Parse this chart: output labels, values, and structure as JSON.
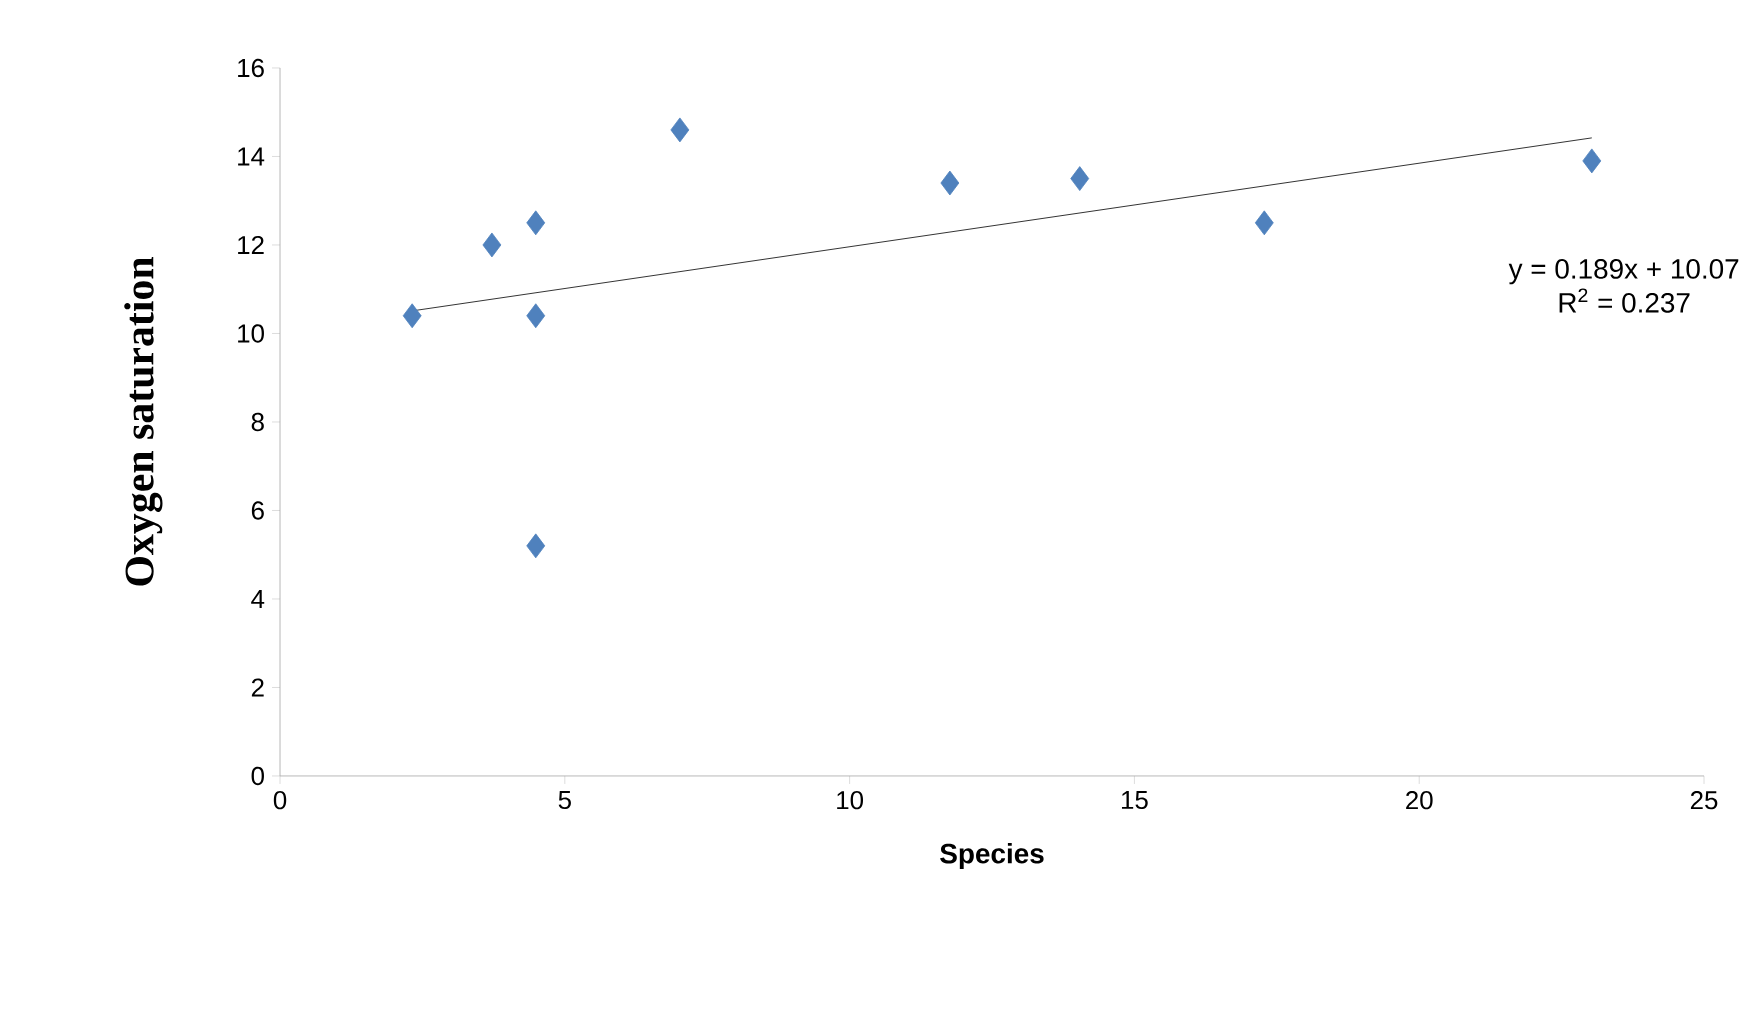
{
  "chart_data": {
    "type": "scatter",
    "xlabel": "Species",
    "ylabel": "Oxygen saturation",
    "xlim": [
      0,
      25
    ],
    "ylim": [
      0,
      16
    ],
    "xticks": [
      0,
      5,
      10,
      15,
      20,
      25
    ],
    "yticks": [
      0,
      2,
      4,
      6,
      8,
      10,
      12,
      14,
      16
    ],
    "grid": false,
    "marker": "diamond",
    "series": [
      {
        "color": "#4f81bd",
        "x": [
          2.32,
          3.72,
          4.49,
          4.49,
          4.49,
          7.02,
          11.76,
          14.04,
          17.28,
          23.03
        ],
        "values": [
          10.4,
          12.0,
          12.5,
          10.4,
          5.2,
          14.6,
          13.4,
          13.5,
          12.5,
          13.9
        ]
      },
      {
        "type": "line",
        "color": "#000000",
        "marker": "none",
        "x": [
          2.32,
          23.03
        ],
        "values": [
          10.51,
          14.42
        ]
      }
    ],
    "annotations": [
      "y = 0.189x + 10.07",
      "R$^{2}$ = 0.237"
    ]
  }
}
